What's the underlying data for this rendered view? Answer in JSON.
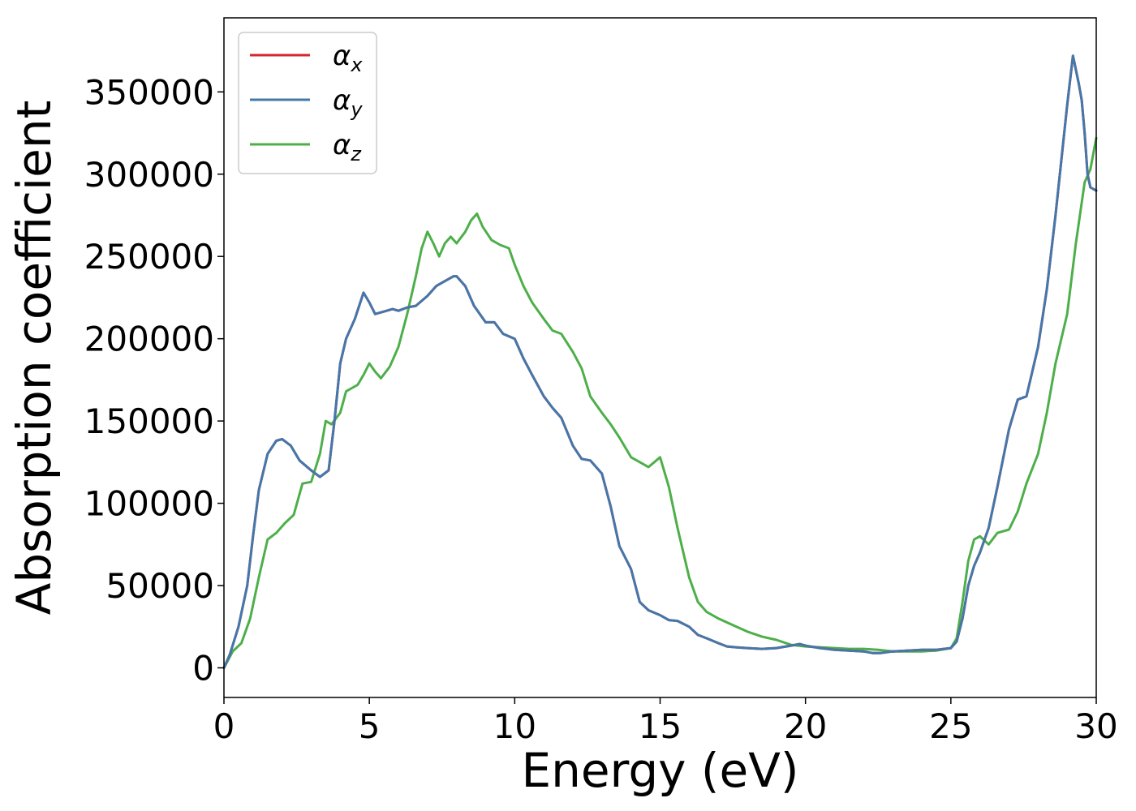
{
  "chart_data": {
    "type": "line",
    "title": "",
    "xlabel": "Energy (eV)",
    "ylabel": "Absorption coefficient",
    "xlim": [
      0,
      30
    ],
    "ylim": [
      -18000,
      395000
    ],
    "xticks": [
      0,
      5,
      10,
      15,
      20,
      25,
      30
    ],
    "yticks": [
      0,
      50000,
      100000,
      150000,
      200000,
      250000,
      300000,
      350000
    ],
    "grid": false,
    "legend_position": "top-left",
    "series": [
      {
        "name": "α",
        "subscript": "x",
        "color": "#d62728",
        "x": [
          0,
          0.2,
          0.5,
          0.8,
          1.0,
          1.2,
          1.5,
          1.8,
          2.0,
          2.3,
          2.6,
          3.0,
          3.3,
          3.6,
          3.8,
          4.0,
          4.2,
          4.5,
          4.8,
          5.0,
          5.2,
          5.4,
          5.8,
          6.0,
          6.3,
          6.6,
          7.0,
          7.3,
          7.6,
          7.9,
          8.0,
          8.3,
          8.6,
          9.0,
          9.3,
          9.6,
          10.0,
          10.3,
          10.6,
          11.0,
          11.3,
          11.6,
          12.0,
          12.3,
          12.6,
          13.0,
          13.3,
          13.6,
          14.0,
          14.3,
          14.6,
          15.0,
          15.3,
          15.6,
          16.0,
          16.3,
          16.6,
          17.0,
          17.3,
          17.6,
          18.0,
          18.5,
          19.0,
          19.5,
          19.8,
          20.0,
          20.5,
          21.0,
          21.5,
          22.0,
          22.3,
          22.6,
          23.0,
          23.5,
          24.0,
          24.5,
          25.0,
          25.2,
          25.4,
          25.6,
          25.8,
          26.0,
          26.3,
          26.6,
          27.0,
          27.3,
          27.6,
          28.0,
          28.3,
          28.6,
          29.0,
          29.2,
          29.4,
          29.5,
          29.6,
          29.7,
          29.8,
          30.0
        ],
        "values": [
          0,
          8000,
          25000,
          50000,
          80000,
          108000,
          130000,
          138000,
          139000,
          135000,
          126000,
          120000,
          116000,
          120000,
          150000,
          185000,
          200000,
          212000,
          228000,
          222000,
          215000,
          216000,
          218000,
          217000,
          219000,
          220000,
          226000,
          232000,
          235000,
          238000,
          238000,
          232000,
          220000,
          210000,
          210000,
          203000,
          200000,
          188000,
          178000,
          165000,
          158000,
          152000,
          135000,
          127000,
          126000,
          118000,
          98000,
          74000,
          60000,
          40000,
          35000,
          32000,
          29000,
          28500,
          25000,
          20000,
          18000,
          15000,
          13000,
          12500,
          12000,
          11500,
          12000,
          13500,
          14500,
          13500,
          12000,
          11000,
          10500,
          10000,
          9000,
          9000,
          10000,
          10500,
          11000,
          11000,
          12000,
          16000,
          30000,
          50000,
          62000,
          70000,
          85000,
          110000,
          145000,
          163000,
          165000,
          195000,
          230000,
          275000,
          342000,
          372000,
          355000,
          345000,
          325000,
          300000,
          292000,
          290000
        ]
      },
      {
        "name": "α",
        "subscript": "y",
        "color": "#4477aa",
        "x": [
          0,
          0.2,
          0.5,
          0.8,
          1.0,
          1.2,
          1.5,
          1.8,
          2.0,
          2.3,
          2.6,
          3.0,
          3.3,
          3.6,
          3.8,
          4.0,
          4.2,
          4.5,
          4.8,
          5.0,
          5.2,
          5.4,
          5.8,
          6.0,
          6.3,
          6.6,
          7.0,
          7.3,
          7.6,
          7.9,
          8.0,
          8.3,
          8.6,
          9.0,
          9.3,
          9.6,
          10.0,
          10.3,
          10.6,
          11.0,
          11.3,
          11.6,
          12.0,
          12.3,
          12.6,
          13.0,
          13.3,
          13.6,
          14.0,
          14.3,
          14.6,
          15.0,
          15.3,
          15.6,
          16.0,
          16.3,
          16.6,
          17.0,
          17.3,
          17.6,
          18.0,
          18.5,
          19.0,
          19.5,
          19.8,
          20.0,
          20.5,
          21.0,
          21.5,
          22.0,
          22.3,
          22.6,
          23.0,
          23.5,
          24.0,
          24.5,
          25.0,
          25.2,
          25.4,
          25.6,
          25.8,
          26.0,
          26.3,
          26.6,
          27.0,
          27.3,
          27.6,
          28.0,
          28.3,
          28.6,
          29.0,
          29.2,
          29.4,
          29.5,
          29.6,
          29.7,
          29.8,
          30.0
        ],
        "values": [
          0,
          8000,
          25000,
          50000,
          80000,
          108000,
          130000,
          138000,
          139000,
          135000,
          126000,
          120000,
          116000,
          120000,
          150000,
          185000,
          200000,
          212000,
          228000,
          222000,
          215000,
          216000,
          218000,
          217000,
          219000,
          220000,
          226000,
          232000,
          235000,
          238000,
          238000,
          232000,
          220000,
          210000,
          210000,
          203000,
          200000,
          188000,
          178000,
          165000,
          158000,
          152000,
          135000,
          127000,
          126000,
          118000,
          98000,
          74000,
          60000,
          40000,
          35000,
          32000,
          29000,
          28500,
          25000,
          20000,
          18000,
          15000,
          13000,
          12500,
          12000,
          11500,
          12000,
          13500,
          14500,
          13500,
          12000,
          11000,
          10500,
          10000,
          9000,
          9000,
          10000,
          10500,
          11000,
          11000,
          12000,
          16000,
          30000,
          50000,
          62000,
          70000,
          85000,
          110000,
          145000,
          163000,
          165000,
          195000,
          230000,
          275000,
          342000,
          372000,
          355000,
          345000,
          325000,
          300000,
          292000,
          290000
        ]
      },
      {
        "name": "α",
        "subscript": "z",
        "color": "#4daf4a",
        "x": [
          0,
          0.3,
          0.6,
          0.9,
          1.2,
          1.5,
          1.8,
          2.1,
          2.4,
          2.7,
          3.0,
          3.3,
          3.5,
          3.7,
          4.0,
          4.2,
          4.4,
          4.6,
          4.8,
          5.0,
          5.2,
          5.4,
          5.7,
          6.0,
          6.3,
          6.6,
          6.8,
          7.0,
          7.2,
          7.4,
          7.6,
          7.8,
          8.0,
          8.3,
          8.5,
          8.7,
          8.9,
          9.2,
          9.5,
          9.8,
          10.0,
          10.3,
          10.6,
          11.0,
          11.3,
          11.6,
          12.0,
          12.3,
          12.6,
          13.0,
          13.3,
          13.6,
          14.0,
          14.3,
          14.6,
          15.0,
          15.3,
          15.6,
          16.0,
          16.3,
          16.6,
          17.0,
          17.5,
          18.0,
          18.5,
          19.0,
          19.5,
          20.0,
          20.5,
          21.0,
          21.5,
          22.0,
          22.5,
          23.0,
          23.5,
          24.0,
          24.5,
          25.0,
          25.2,
          25.4,
          25.6,
          25.8,
          26.0,
          26.3,
          26.6,
          27.0,
          27.3,
          27.6,
          28.0,
          28.3,
          28.6,
          29.0,
          29.3,
          29.6,
          29.8,
          30.0
        ],
        "values": [
          0,
          10000,
          15000,
          30000,
          55000,
          78000,
          82000,
          88000,
          93000,
          112000,
          113000,
          130000,
          150000,
          148000,
          155000,
          168000,
          170000,
          172000,
          178000,
          185000,
          180000,
          176000,
          183000,
          195000,
          215000,
          238000,
          255000,
          265000,
          258000,
          250000,
          258000,
          262000,
          258000,
          265000,
          272000,
          276000,
          268000,
          260000,
          257000,
          255000,
          245000,
          232000,
          222000,
          212000,
          205000,
          203000,
          192000,
          182000,
          165000,
          155000,
          148000,
          140000,
          128000,
          125000,
          122000,
          128000,
          110000,
          85000,
          55000,
          40000,
          34000,
          30000,
          26000,
          22000,
          19000,
          17000,
          14000,
          13000,
          12500,
          12000,
          11500,
          11500,
          11000,
          10000,
          10000,
          10000,
          10500,
          12000,
          18000,
          40000,
          65000,
          78000,
          80000,
          75000,
          82000,
          84000,
          95000,
          112000,
          130000,
          155000,
          185000,
          215000,
          258000,
          295000,
          303000,
          322000
        ]
      }
    ]
  }
}
